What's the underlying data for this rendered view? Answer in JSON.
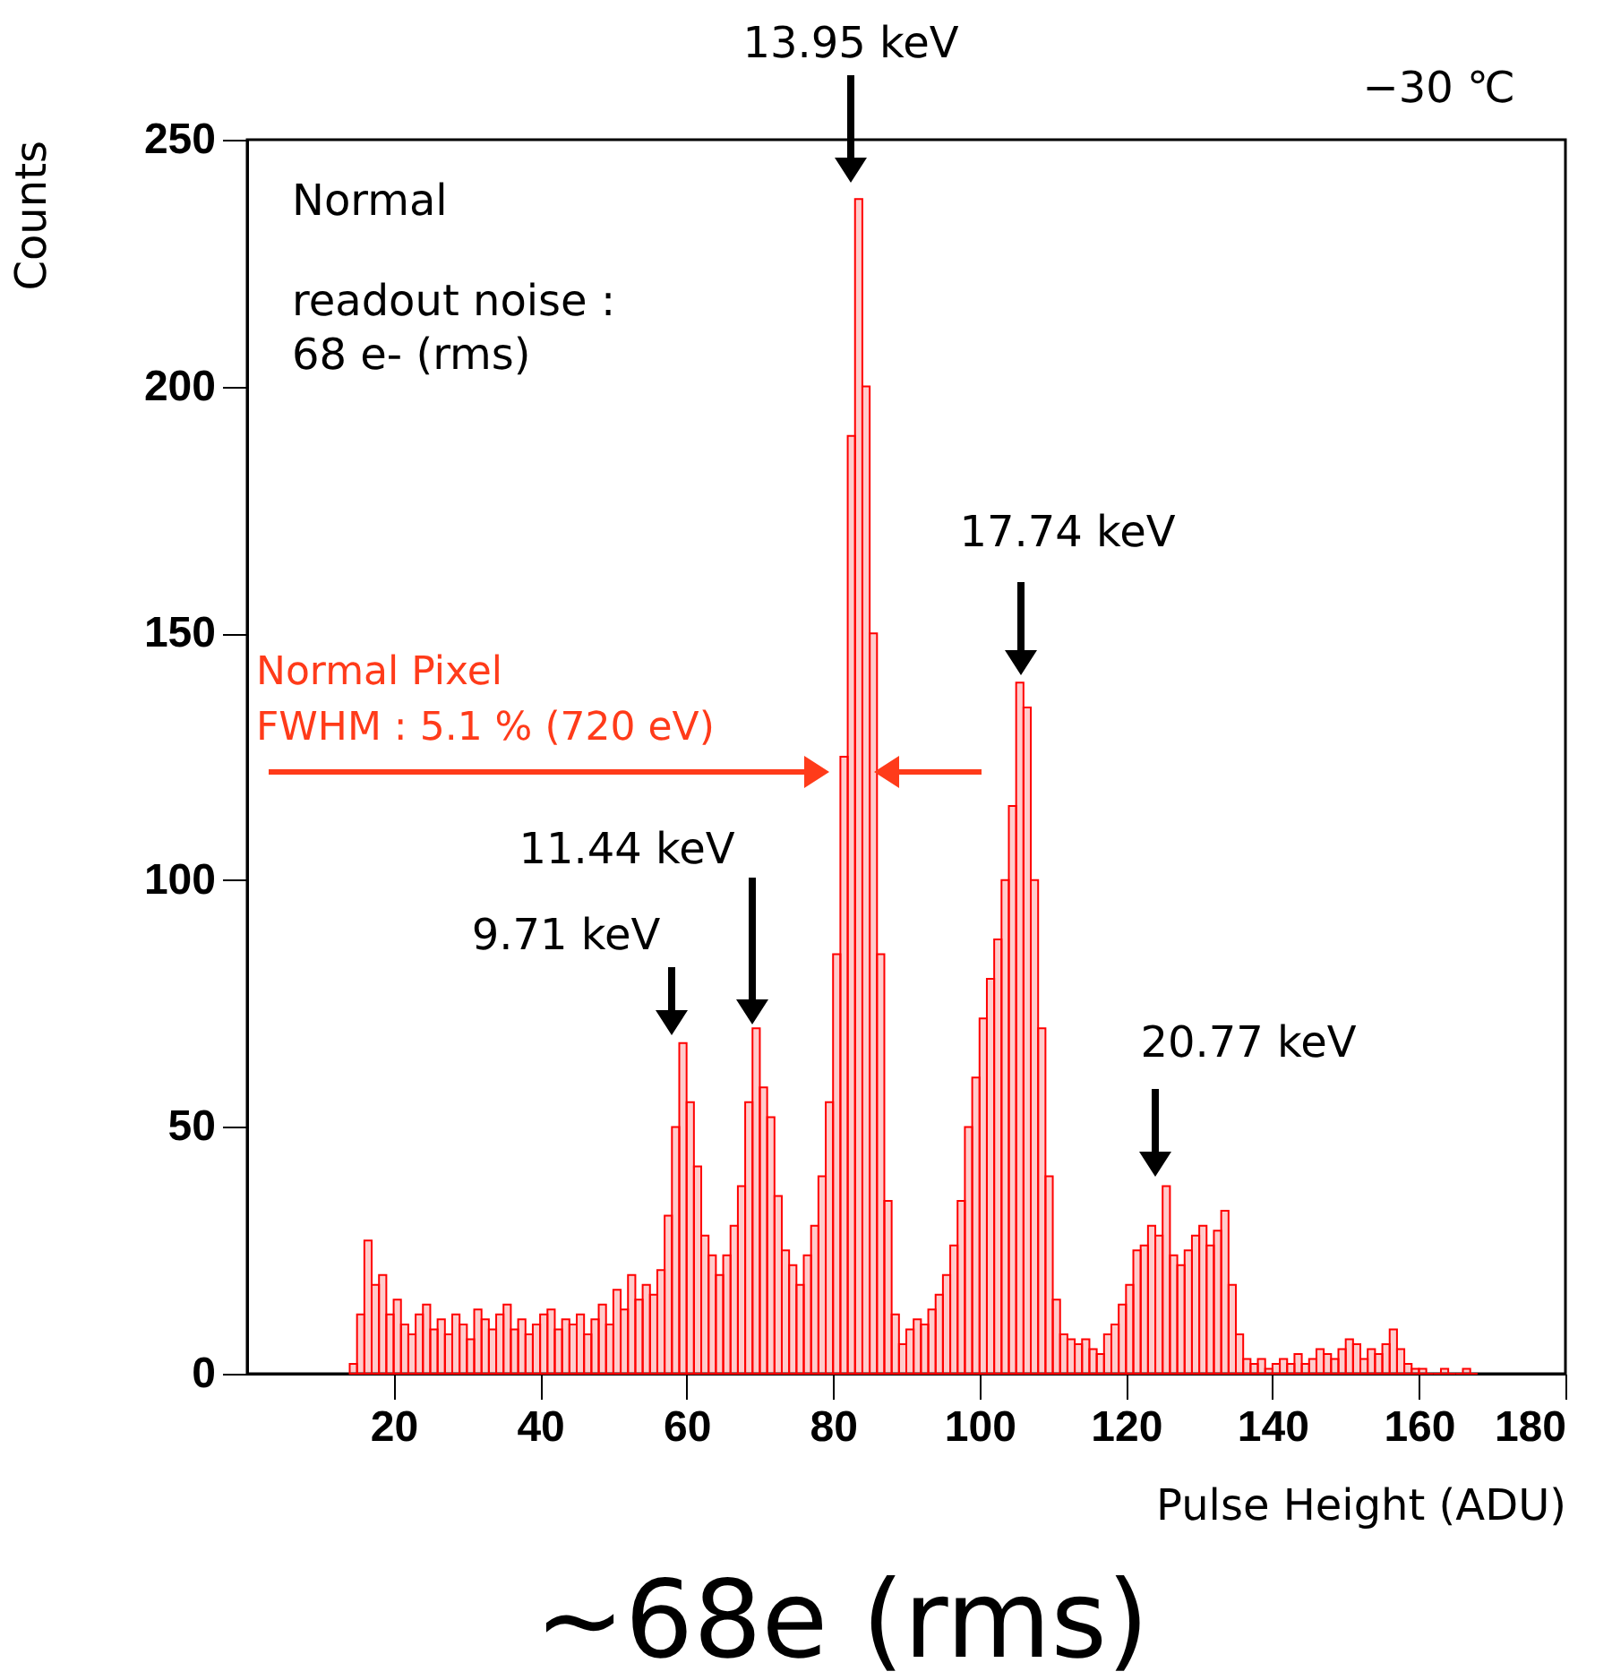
{
  "chart_data": {
    "type": "histogram",
    "xlabel": "Pulse Height (ADU)",
    "ylabel": "Counts",
    "color": "#ff0000",
    "bins": [
      14,
      15,
      16,
      17,
      18,
      19,
      20,
      21,
      22,
      23,
      24,
      25,
      26,
      27,
      28,
      29,
      30,
      31,
      32,
      33,
      34,
      35,
      36,
      37,
      38,
      39,
      40,
      41,
      42,
      43,
      44,
      45,
      46,
      47,
      48,
      49,
      50,
      51,
      52,
      53,
      54,
      55,
      56,
      57,
      58,
      59,
      60,
      61,
      62,
      63,
      64,
      65,
      66,
      67,
      68,
      69,
      70,
      71,
      72,
      73,
      74,
      75,
      76,
      77,
      78,
      79,
      80,
      81,
      82,
      83,
      84,
      85,
      86,
      87,
      88,
      89,
      90,
      91,
      92,
      93,
      94,
      95,
      96,
      97,
      98,
      99,
      100,
      101,
      102,
      103,
      104,
      105,
      106,
      107,
      108,
      109,
      110,
      111,
      112,
      113,
      114,
      115,
      116,
      117,
      118,
      119,
      120,
      121,
      122,
      123,
      124,
      125,
      126,
      127,
      128,
      129,
      130,
      131,
      132,
      133,
      134,
      135,
      136,
      137,
      138,
      139,
      140,
      141,
      142,
      143,
      144,
      145,
      146,
      147,
      148,
      149,
      150,
      151,
      152,
      153,
      154,
      155,
      156,
      157,
      158,
      159,
      160,
      161,
      162,
      163,
      164,
      165,
      166,
      167,
      168
    ],
    "values": [
      2,
      12,
      27,
      18,
      20,
      12,
      15,
      10,
      8,
      12,
      14,
      9,
      11,
      8,
      12,
      10,
      7,
      13,
      11,
      9,
      12,
      14,
      9,
      11,
      8,
      10,
      12,
      13,
      9,
      11,
      10,
      12,
      8,
      11,
      14,
      10,
      17,
      13,
      20,
      15,
      18,
      16,
      21,
      32,
      50,
      67,
      55,
      42,
      28,
      24,
      20,
      24,
      30,
      38,
      55,
      70,
      58,
      52,
      36,
      25,
      22,
      18,
      24,
      30,
      40,
      55,
      85,
      125,
      190,
      238,
      200,
      150,
      85,
      35,
      12,
      6,
      9,
      11,
      10,
      13,
      16,
      20,
      26,
      35,
      50,
      60,
      72,
      80,
      88,
      100,
      115,
      140,
      135,
      100,
      70,
      40,
      15,
      8,
      7,
      6,
      7,
      5,
      4,
      8,
      10,
      14,
      18,
      25,
      26,
      30,
      28,
      38,
      24,
      22,
      25,
      28,
      30,
      26,
      29,
      33,
      18,
      8,
      3,
      2,
      3,
      1,
      2,
      3,
      2,
      4,
      2,
      3,
      5,
      4,
      3,
      5,
      7,
      6,
      3,
      5,
      4,
      6,
      9,
      5,
      2,
      1,
      1,
      0,
      0,
      1,
      0,
      0,
      1,
      0
    ],
    "xlim": [
      0,
      180
    ],
    "xticks": [
      20,
      40,
      60,
      80,
      100,
      120,
      140,
      160,
      180
    ],
    "ylim": [
      0,
      250
    ],
    "yticks": [
      0,
      50,
      100,
      150,
      200,
      250
    ],
    "annotations": [
      "Normal",
      "readout noise :\n68 e- (rms)",
      "−30 ℃",
      "~68e (rms)",
      "9.71 keV",
      "11.44 keV",
      "13.95 keV",
      "17.74 keV",
      "20.77 keV",
      "Normal Pixel\nFWHM : 5.1 % (720 eV)"
    ]
  }
}
